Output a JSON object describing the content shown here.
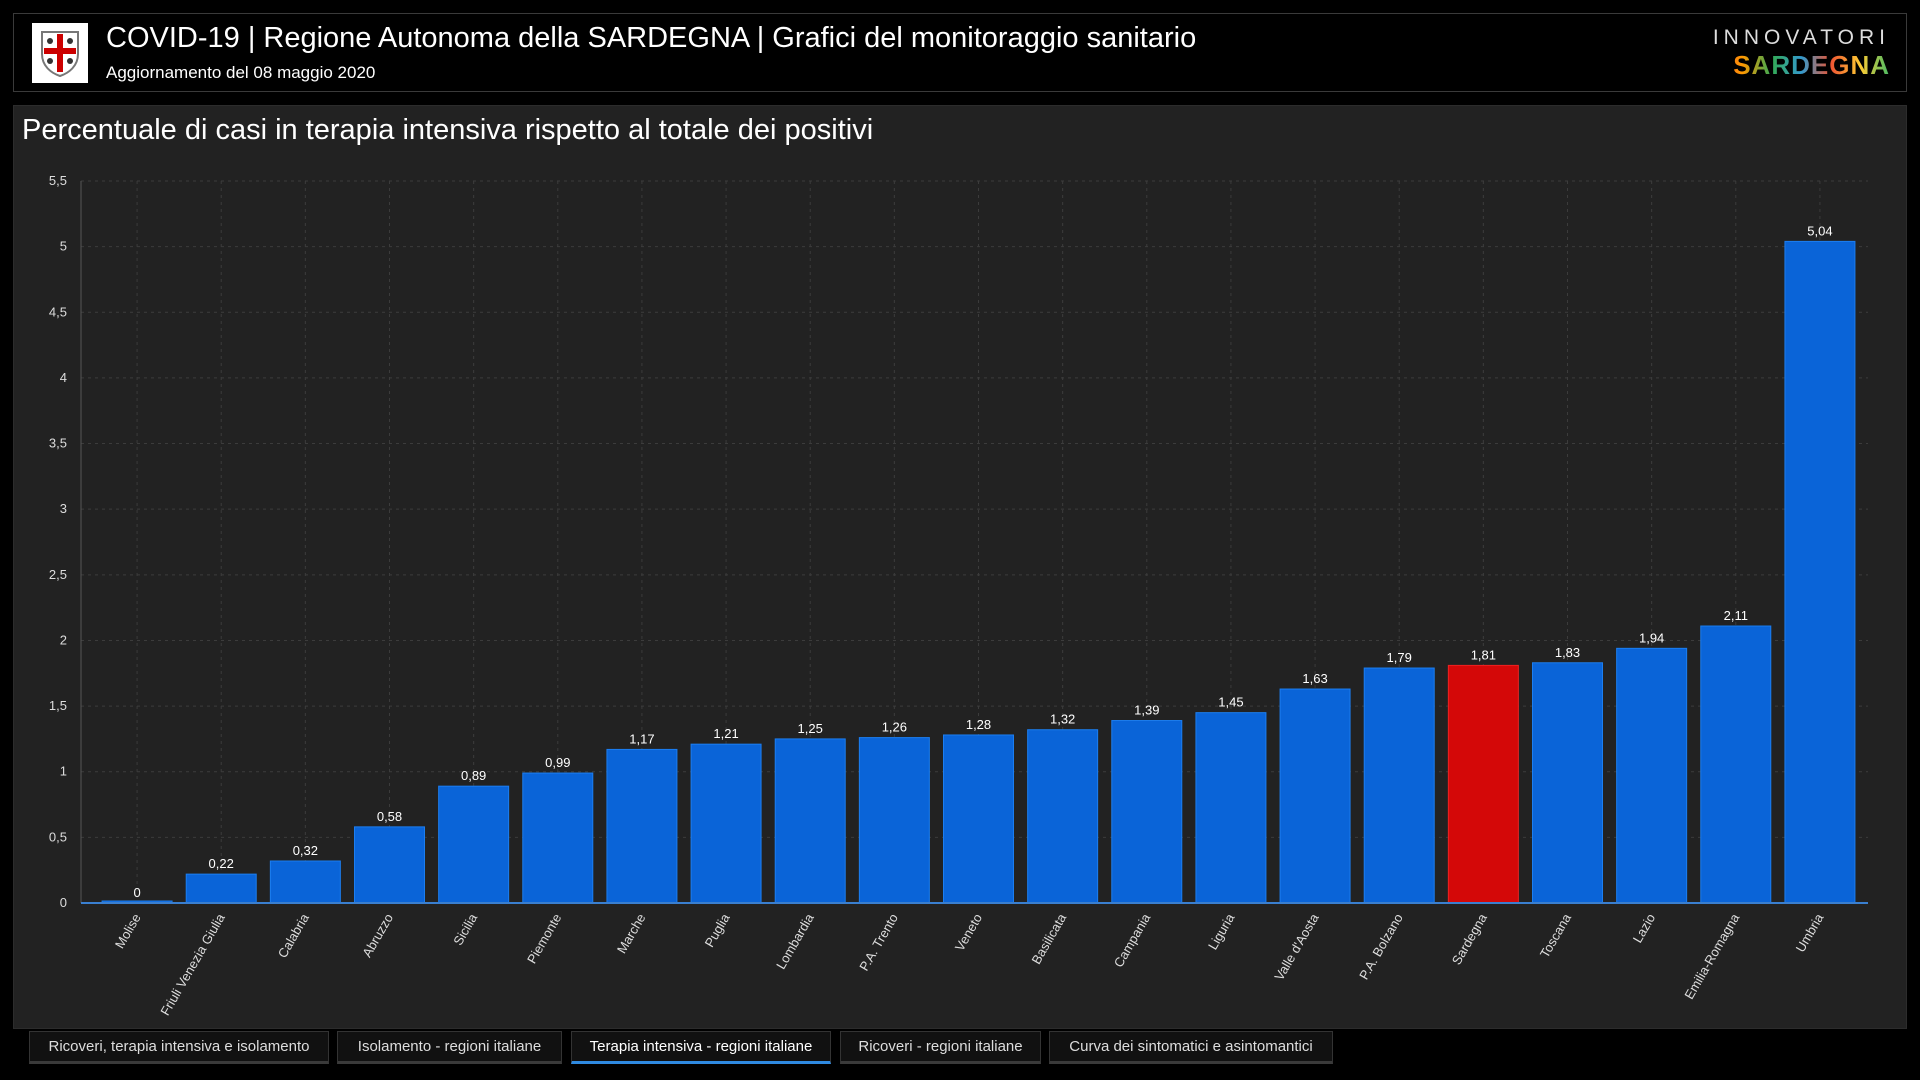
{
  "header": {
    "title": "COVID-19 | Regione Autonoma della SARDEGNA | Grafici del monitoraggio sanitario",
    "subtitle": "Aggiornamento del 08 maggio 2020",
    "logo_line1": "INNOVATORI",
    "logo_line2": "SARDEGNA"
  },
  "tabs": [
    {
      "label": "Ricoveri, terapia intensiva e isolamento",
      "active": false
    },
    {
      "label": "Isolamento - regioni italiane",
      "active": false
    },
    {
      "label": "Terapia intensiva - regioni italiane",
      "active": true
    },
    {
      "label": "Ricoveri - regioni italiane",
      "active": false
    },
    {
      "label": "Curva dei sintomatici e asintomantici",
      "active": false
    }
  ],
  "colors": {
    "bar": "#0a64d8",
    "highlight": "#d40808",
    "grid": "#3c3c3c"
  },
  "chart_data": {
    "type": "bar",
    "title": "Percentuale di casi in terapia intensiva rispetto al totale dei positivi",
    "xlabel": "",
    "ylabel": "",
    "ylim": [
      0,
      5.5
    ],
    "yticks": [
      "0",
      "0,5",
      "1",
      "1,5",
      "2",
      "2,5",
      "3",
      "3,5",
      "4",
      "4,5",
      "5",
      "5,5"
    ],
    "grid": true,
    "categories": [
      "Molise",
      "Friuli Venezia Giulia",
      "Calabria",
      "Abruzzo",
      "Sicilia",
      "Piemonte",
      "Marche",
      "Puglia",
      "Lombardia",
      "P.A. Trento",
      "Veneto",
      "Basilicata",
      "Campania",
      "Liguria",
      "Valle d'Aosta",
      "P.A. Bolzano",
      "Sardegna",
      "Toscana",
      "Lazio",
      "Emilia-Romagna",
      "Umbria"
    ],
    "values": [
      0,
      0.22,
      0.32,
      0.58,
      0.89,
      0.99,
      1.17,
      1.21,
      1.25,
      1.26,
      1.28,
      1.32,
      1.39,
      1.45,
      1.63,
      1.79,
      1.81,
      1.83,
      1.94,
      2.11,
      5.04
    ],
    "labels": [
      "0",
      "0,22",
      "0,32",
      "0,58",
      "0,89",
      "0,99",
      "1,17",
      "1,21",
      "1,25",
      "1,26",
      "1,28",
      "1,32",
      "1,39",
      "1,45",
      "1,63",
      "1,79",
      "1,81",
      "1,83",
      "1,94",
      "2,11",
      "5,04"
    ],
    "highlight": "Sardegna"
  }
}
